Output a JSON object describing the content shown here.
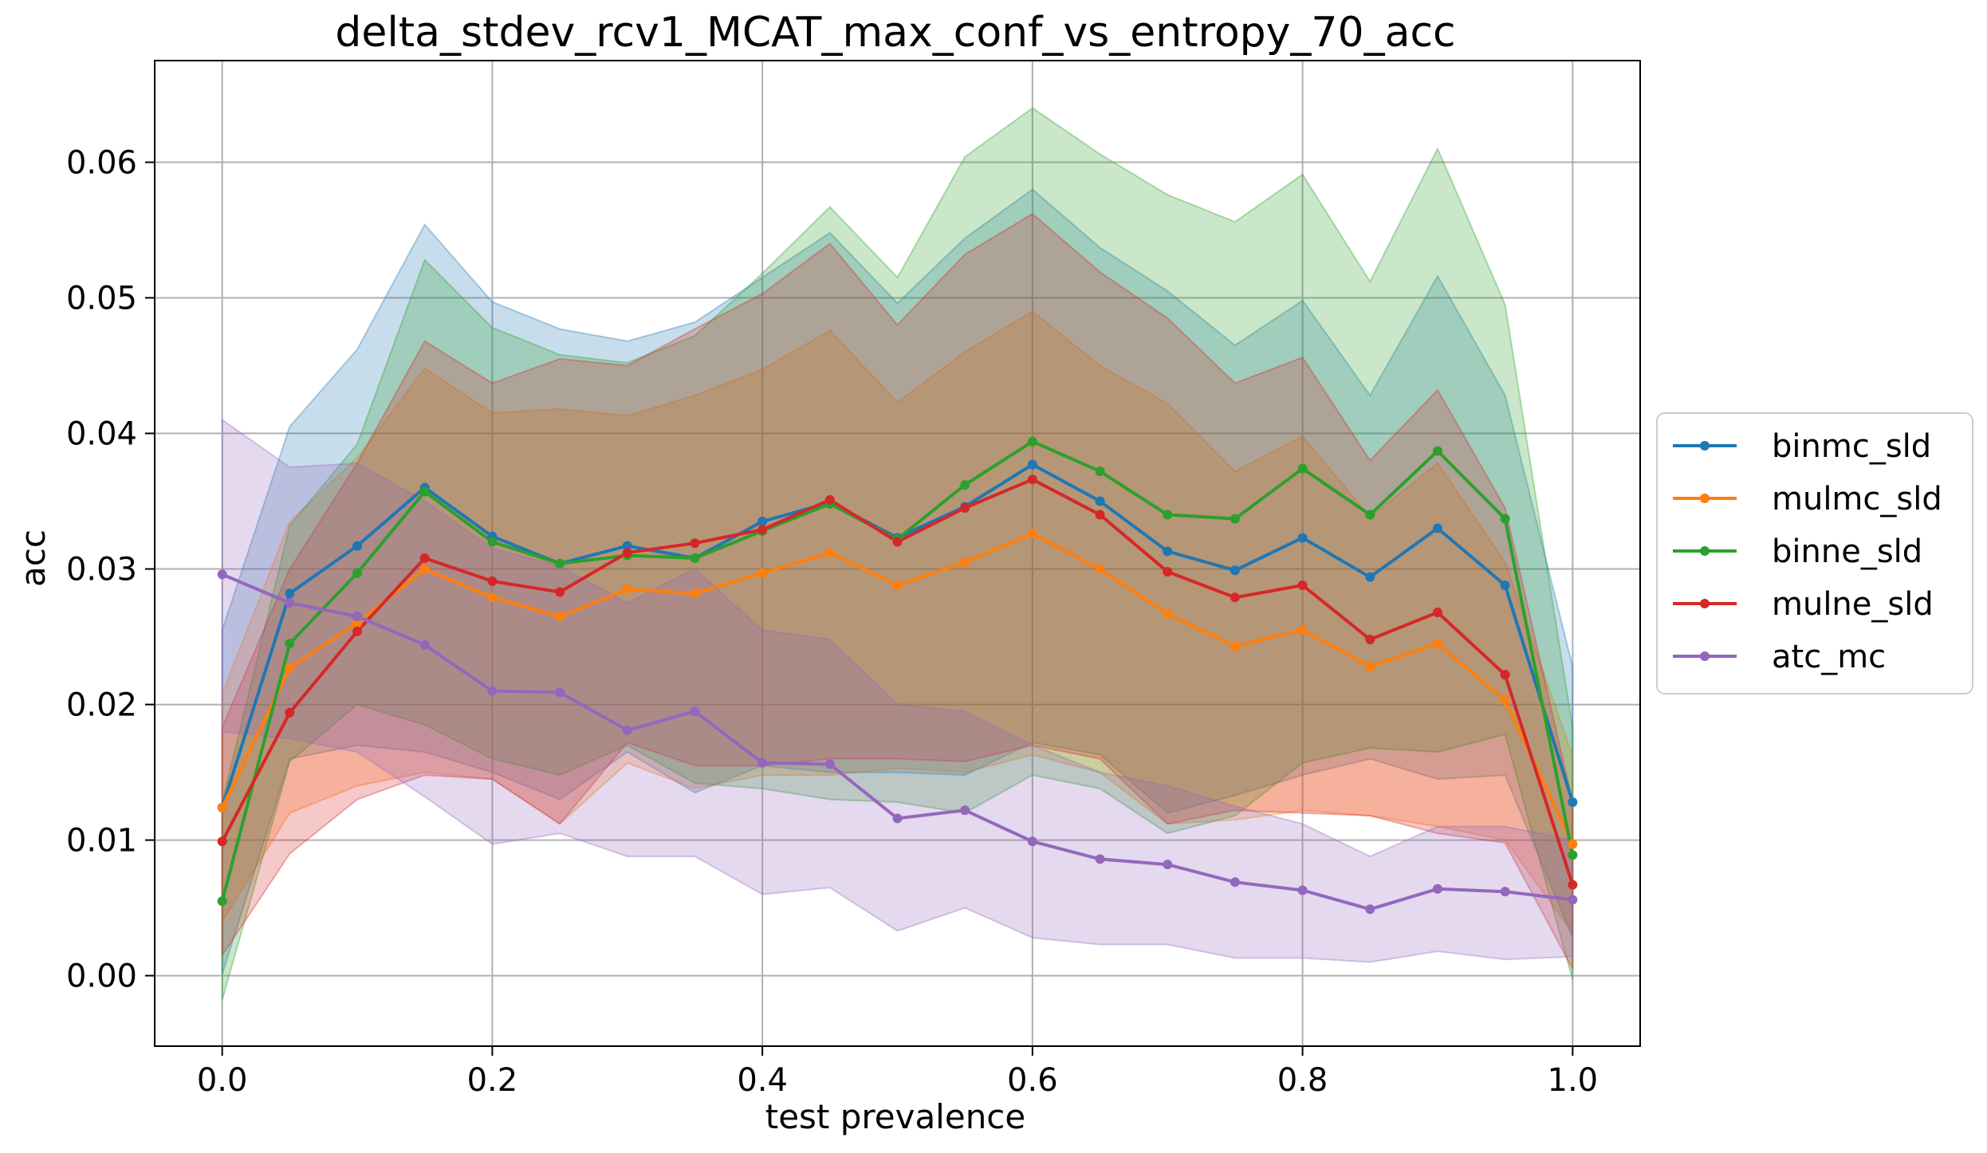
{
  "chart_data": {
    "type": "line",
    "title": "delta_stdev_rcv1_MCAT_max_conf_vs_entropy_70_acc",
    "xlabel": "test prevalence",
    "ylabel": "acc",
    "xlim": [
      -0.05,
      1.05
    ],
    "ylim": [
      -0.0052,
      0.0675
    ],
    "xticks": [
      0.0,
      0.2,
      0.4,
      0.6,
      0.8,
      1.0
    ],
    "xtick_labels": [
      "0.0",
      "0.2",
      "0.4",
      "0.6",
      "0.8",
      "1.0"
    ],
    "yticks": [
      0.0,
      0.01,
      0.02,
      0.03,
      0.04,
      0.05,
      0.06
    ],
    "ytick_labels": [
      "0.00",
      "0.01",
      "0.02",
      "0.03",
      "0.04",
      "0.05",
      "0.06"
    ],
    "grid": true,
    "legend_position": "outside right",
    "x": [
      0.0,
      0.05,
      0.1,
      0.15,
      0.2,
      0.25,
      0.3,
      0.35,
      0.4,
      0.45,
      0.5,
      0.55,
      0.6,
      0.65,
      0.7,
      0.75,
      0.8,
      0.85,
      0.9,
      0.95,
      1.0
    ],
    "series": [
      {
        "name": "binmc_sld",
        "color": "#1f77b4",
        "values": [
          0.0124,
          0.0282,
          0.0317,
          0.036,
          0.0324,
          0.0304,
          0.0317,
          0.0308,
          0.0335,
          0.0349,
          0.0323,
          0.0346,
          0.0377,
          0.035,
          0.0313,
          0.0299,
          0.0323,
          0.0294,
          0.033,
          0.0288,
          0.0128
        ],
        "upper": [
          0.0255,
          0.0405,
          0.0462,
          0.0554,
          0.0497,
          0.0477,
          0.0468,
          0.0482,
          0.0515,
          0.0548,
          0.0496,
          0.0544,
          0.058,
          0.0537,
          0.0505,
          0.0465,
          0.0498,
          0.0428,
          0.0516,
          0.0428,
          0.0228
        ],
        "lower": [
          0.0001,
          0.016,
          0.017,
          0.0165,
          0.015,
          0.013,
          0.0165,
          0.0135,
          0.0155,
          0.015,
          0.015,
          0.0148,
          0.0172,
          0.0163,
          0.012,
          0.0133,
          0.0148,
          0.016,
          0.0145,
          0.0148,
          0.0028
        ]
      },
      {
        "name": "mulmc_sld",
        "color": "#ff7f0e",
        "values": [
          0.0124,
          0.0227,
          0.026,
          0.03,
          0.0279,
          0.0265,
          0.0285,
          0.0282,
          0.0297,
          0.0312,
          0.0288,
          0.0305,
          0.0326,
          0.03,
          0.0267,
          0.0243,
          0.0255,
          0.0228,
          0.0245,
          0.0203,
          0.0097
        ],
        "upper": [
          0.0208,
          0.0335,
          0.0382,
          0.0448,
          0.0415,
          0.0418,
          0.0413,
          0.0428,
          0.0447,
          0.0476,
          0.0423,
          0.046,
          0.049,
          0.045,
          0.0422,
          0.0372,
          0.0398,
          0.0338,
          0.0378,
          0.0305,
          0.0162
        ],
        "lower": [
          0.004,
          0.012,
          0.014,
          0.015,
          0.0145,
          0.0112,
          0.0157,
          0.0138,
          0.0148,
          0.0148,
          0.0153,
          0.015,
          0.0163,
          0.015,
          0.0112,
          0.0115,
          0.0122,
          0.0118,
          0.011,
          0.01,
          0.0032
        ]
      },
      {
        "name": "binne_sld",
        "color": "#2ca02c",
        "values": [
          0.0055,
          0.0245,
          0.0297,
          0.0357,
          0.032,
          0.0304,
          0.031,
          0.0308,
          0.0328,
          0.0348,
          0.0322,
          0.0362,
          0.0394,
          0.0372,
          0.034,
          0.0337,
          0.0374,
          0.034,
          0.0387,
          0.0337,
          0.0089
        ],
        "upper": [
          0.0128,
          0.0332,
          0.0392,
          0.0528,
          0.0478,
          0.0458,
          0.0452,
          0.0472,
          0.0518,
          0.0567,
          0.0515,
          0.0604,
          0.064,
          0.0606,
          0.0576,
          0.0556,
          0.0591,
          0.0512,
          0.061,
          0.0495,
          0.0183
        ],
        "lower": [
          -0.0018,
          0.0158,
          0.02,
          0.0185,
          0.016,
          0.0148,
          0.017,
          0.0142,
          0.0138,
          0.013,
          0.0128,
          0.012,
          0.0148,
          0.0138,
          0.0105,
          0.0118,
          0.0157,
          0.0168,
          0.0165,
          0.0178,
          -0.0003
        ]
      },
      {
        "name": "mulne_sld",
        "color": "#d62728",
        "values": [
          0.0099,
          0.0194,
          0.0254,
          0.0308,
          0.0291,
          0.0283,
          0.0312,
          0.0319,
          0.0329,
          0.0351,
          0.032,
          0.0345,
          0.0366,
          0.034,
          0.0298,
          0.0279,
          0.0288,
          0.0248,
          0.0268,
          0.0222,
          0.0067
        ],
        "upper": [
          0.0183,
          0.03,
          0.0378,
          0.0468,
          0.0437,
          0.0455,
          0.045,
          0.0477,
          0.0503,
          0.054,
          0.048,
          0.0532,
          0.0562,
          0.0519,
          0.0485,
          0.0437,
          0.0456,
          0.038,
          0.0432,
          0.0345,
          0.0128
        ],
        "lower": [
          0.0015,
          0.009,
          0.013,
          0.0148,
          0.0145,
          0.0112,
          0.0172,
          0.0155,
          0.0155,
          0.016,
          0.016,
          0.0158,
          0.017,
          0.016,
          0.0112,
          0.0122,
          0.012,
          0.0118,
          0.0105,
          0.0098,
          0.0005
        ]
      },
      {
        "name": "atc_mc",
        "color": "#9467bd",
        "values": [
          0.0296,
          0.0275,
          0.0265,
          0.0244,
          0.021,
          0.0209,
          0.0181,
          0.0195,
          0.0157,
          0.0156,
          0.0116,
          0.0122,
          0.0099,
          0.0086,
          0.0082,
          0.0069,
          0.0063,
          0.0049,
          0.0064,
          0.0062,
          0.0056
        ],
        "upper": [
          0.041,
          0.0375,
          0.0378,
          0.035,
          0.0315,
          0.0302,
          0.0275,
          0.03,
          0.0255,
          0.0248,
          0.02,
          0.0195,
          0.017,
          0.015,
          0.014,
          0.0125,
          0.0112,
          0.0088,
          0.011,
          0.011,
          0.01
        ],
        "lower": [
          0.018,
          0.0175,
          0.0165,
          0.0132,
          0.0097,
          0.0105,
          0.0088,
          0.0088,
          0.006,
          0.0065,
          0.0033,
          0.005,
          0.0028,
          0.0023,
          0.0023,
          0.0013,
          0.0013,
          0.001,
          0.0018,
          0.0012,
          0.0014
        ]
      }
    ]
  }
}
